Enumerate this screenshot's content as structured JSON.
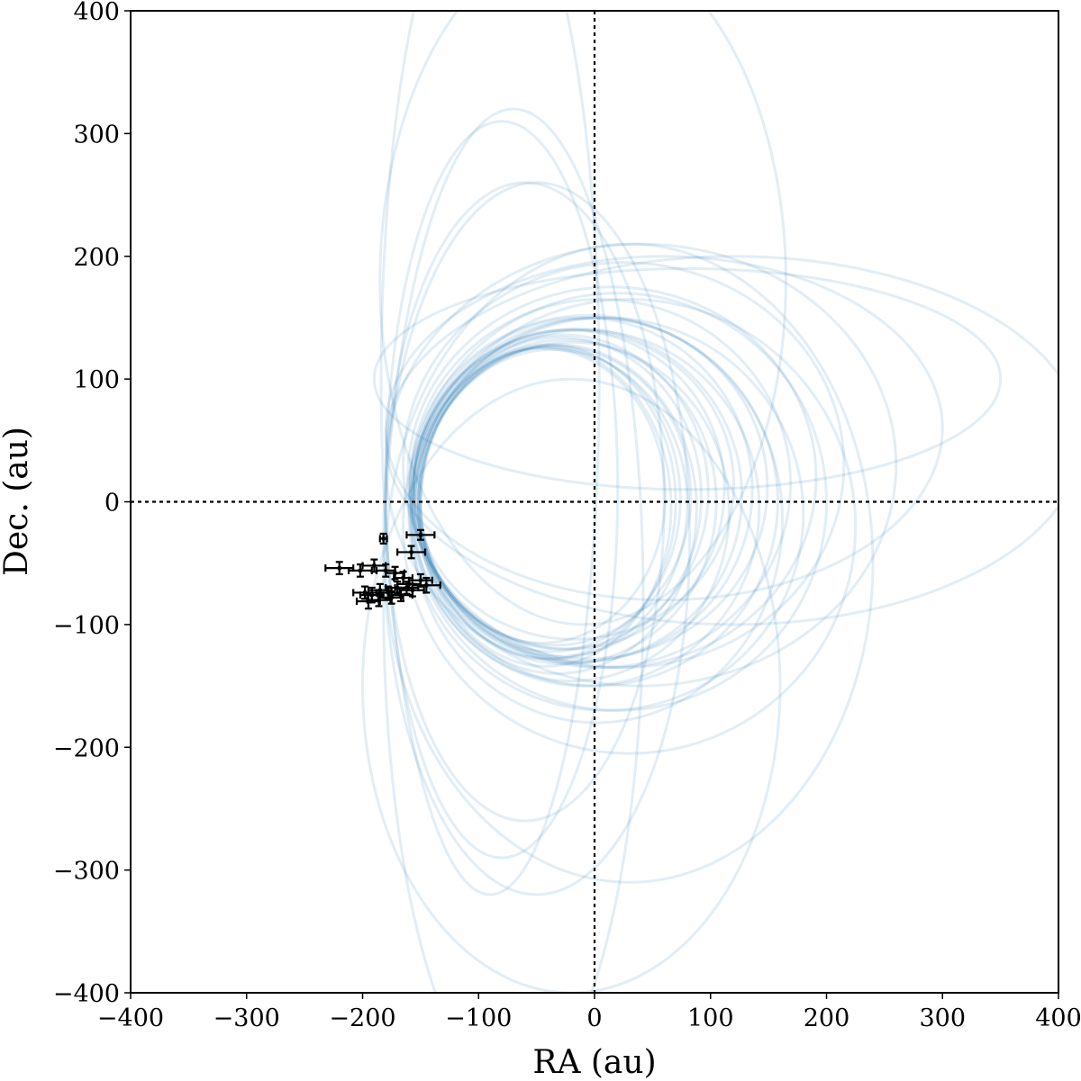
{
  "chart_data": {
    "type": "scatter",
    "title": "",
    "xlabel": "RA (au)",
    "ylabel": "Dec. (au)",
    "xlim": [
      -400,
      400
    ],
    "ylim": [
      -400,
      400
    ],
    "xticks": [
      "−400",
      "−300",
      "−200",
      "−100",
      "0",
      "100",
      "200",
      "300",
      "400"
    ],
    "yticks": [
      "−400",
      "−300",
      "−200",
      "−100",
      "0",
      "100",
      "200",
      "300",
      "400"
    ],
    "xtick_values": [
      -400,
      -300,
      -200,
      -100,
      0,
      100,
      200,
      300,
      400
    ],
    "ytick_values": [
      -400,
      -300,
      -200,
      -100,
      0,
      100,
      200,
      300,
      400
    ],
    "grid": false,
    "reference_lines": [
      {
        "orientation": "vertical",
        "value": 0,
        "style": "dotted"
      },
      {
        "orientation": "horizontal",
        "value": 0,
        "style": "dotted"
      }
    ],
    "orbit_color": "#1f77b4",
    "point_color": "#000000",
    "orbits": [
      {
        "center": [
          -40,
          0
        ],
        "a": 110,
        "b": 128
      },
      {
        "center": [
          -38,
          2
        ],
        "a": 112,
        "b": 124
      },
      {
        "center": [
          -42,
          -4
        ],
        "a": 108,
        "b": 130
      },
      {
        "center": [
          -35,
          5
        ],
        "a": 118,
        "b": 122
      },
      {
        "center": [
          -36,
          -2
        ],
        "a": 116,
        "b": 126
      },
      {
        "center": [
          -30,
          4
        ],
        "a": 122,
        "b": 130
      },
      {
        "center": [
          -28,
          8
        ],
        "a": 126,
        "b": 128
      },
      {
        "center": [
          -25,
          0
        ],
        "a": 130,
        "b": 132
      },
      {
        "center": [
          -22,
          10
        ],
        "a": 134,
        "b": 130
      },
      {
        "center": [
          -20,
          -8
        ],
        "a": 136,
        "b": 138
      },
      {
        "center": [
          -15,
          5
        ],
        "a": 142,
        "b": 136
      },
      {
        "center": [
          -10,
          10
        ],
        "a": 146,
        "b": 140
      },
      {
        "center": [
          -8,
          -5
        ],
        "a": 150,
        "b": 145
      },
      {
        "center": [
          -5,
          12
        ],
        "a": 154,
        "b": 140
      },
      {
        "center": [
          0,
          0
        ],
        "a": 158,
        "b": 150
      },
      {
        "center": [
          5,
          15
        ],
        "a": 164,
        "b": 150
      },
      {
        "center": [
          10,
          -10
        ],
        "a": 170,
        "b": 160
      },
      {
        "center": [
          15,
          20
        ],
        "a": 176,
        "b": 155
      },
      {
        "center": [
          20,
          0
        ],
        "a": 180,
        "b": 170
      },
      {
        "center": [
          -45,
          5
        ],
        "a": 106,
        "b": 120
      },
      {
        "center": [
          -32,
          -6
        ],
        "a": 120,
        "b": 134
      },
      {
        "center": [
          -18,
          14
        ],
        "a": 138,
        "b": 126
      },
      {
        "center": [
          2,
          -15
        ],
        "a": 160,
        "b": 165
      },
      {
        "center": [
          25,
          30
        ],
        "a": 190,
        "b": 165
      },
      {
        "center": [
          30,
          -20
        ],
        "a": 195,
        "b": 185
      },
      {
        "center": [
          -60,
          0
        ],
        "a": 120,
        "b": 260
      },
      {
        "center": [
          -80,
          10
        ],
        "a": 100,
        "b": 300
      },
      {
        "center": [
          -50,
          -30
        ],
        "a": 132,
        "b": 290
      },
      {
        "center": [
          -90,
          100
        ],
        "a": 94,
        "b": 420
      },
      {
        "center": [
          -70,
          -80
        ],
        "a": 112,
        "b": 400
      },
      {
        "center": [
          40,
          30
        ],
        "a": 220,
        "b": 180
      },
      {
        "center": [
          60,
          60
        ],
        "a": 240,
        "b": 140
      },
      {
        "center": [
          80,
          100
        ],
        "a": 270,
        "b": 90
      },
      {
        "center": [
          120,
          50
        ],
        "a": 300,
        "b": 150
      },
      {
        "center": [
          -20,
          -150
        ],
        "a": 180,
        "b": 250
      },
      {
        "center": [
          -10,
          180
        ],
        "a": 175,
        "b": 280
      },
      {
        "center": [
          30,
          -50
        ],
        "a": 210,
        "b": 260
      }
    ],
    "points": [
      {
        "x": -182,
        "y": -30,
        "xerr": 3,
        "yerr": 4
      },
      {
        "x": -150,
        "y": -27,
        "xerr": 12,
        "yerr": 4
      },
      {
        "x": -158,
        "y": -41,
        "xerr": 12,
        "yerr": 5
      },
      {
        "x": -220,
        "y": -54,
        "xerr": 12,
        "yerr": 5
      },
      {
        "x": -202,
        "y": -56,
        "xerr": 10,
        "yerr": 5
      },
      {
        "x": -190,
        "y": -52,
        "xerr": 10,
        "yerr": 5
      },
      {
        "x": -180,
        "y": -56,
        "xerr": 8,
        "yerr": 5
      },
      {
        "x": -172,
        "y": -58,
        "xerr": 8,
        "yerr": 5
      },
      {
        "x": -165,
        "y": -62,
        "xerr": 8,
        "yerr": 5
      },
      {
        "x": -160,
        "y": -67,
        "xerr": 10,
        "yerr": 5
      },
      {
        "x": -150,
        "y": -64,
        "xerr": 10,
        "yerr": 5
      },
      {
        "x": -145,
        "y": -68,
        "xerr": 12,
        "yerr": 6
      },
      {
        "x": -157,
        "y": -72,
        "xerr": 10,
        "yerr": 5
      },
      {
        "x": -170,
        "y": -70,
        "xerr": 10,
        "yerr": 5
      },
      {
        "x": -178,
        "y": -74,
        "xerr": 10,
        "yerr": 5
      },
      {
        "x": -185,
        "y": -72,
        "xerr": 10,
        "yerr": 5
      },
      {
        "x": -192,
        "y": -76,
        "xerr": 10,
        "yerr": 6
      },
      {
        "x": -198,
        "y": -74,
        "xerr": 10,
        "yerr": 5
      },
      {
        "x": -186,
        "y": -80,
        "xerr": 10,
        "yerr": 5
      },
      {
        "x": -195,
        "y": -81,
        "xerr": 10,
        "yerr": 6
      },
      {
        "x": -175,
        "y": -78,
        "xerr": 10,
        "yerr": 5
      },
      {
        "x": -167,
        "y": -76,
        "xerr": 10,
        "yerr": 5
      },
      {
        "x": -162,
        "y": -70,
        "xerr": 10,
        "yerr": 5
      }
    ]
  }
}
